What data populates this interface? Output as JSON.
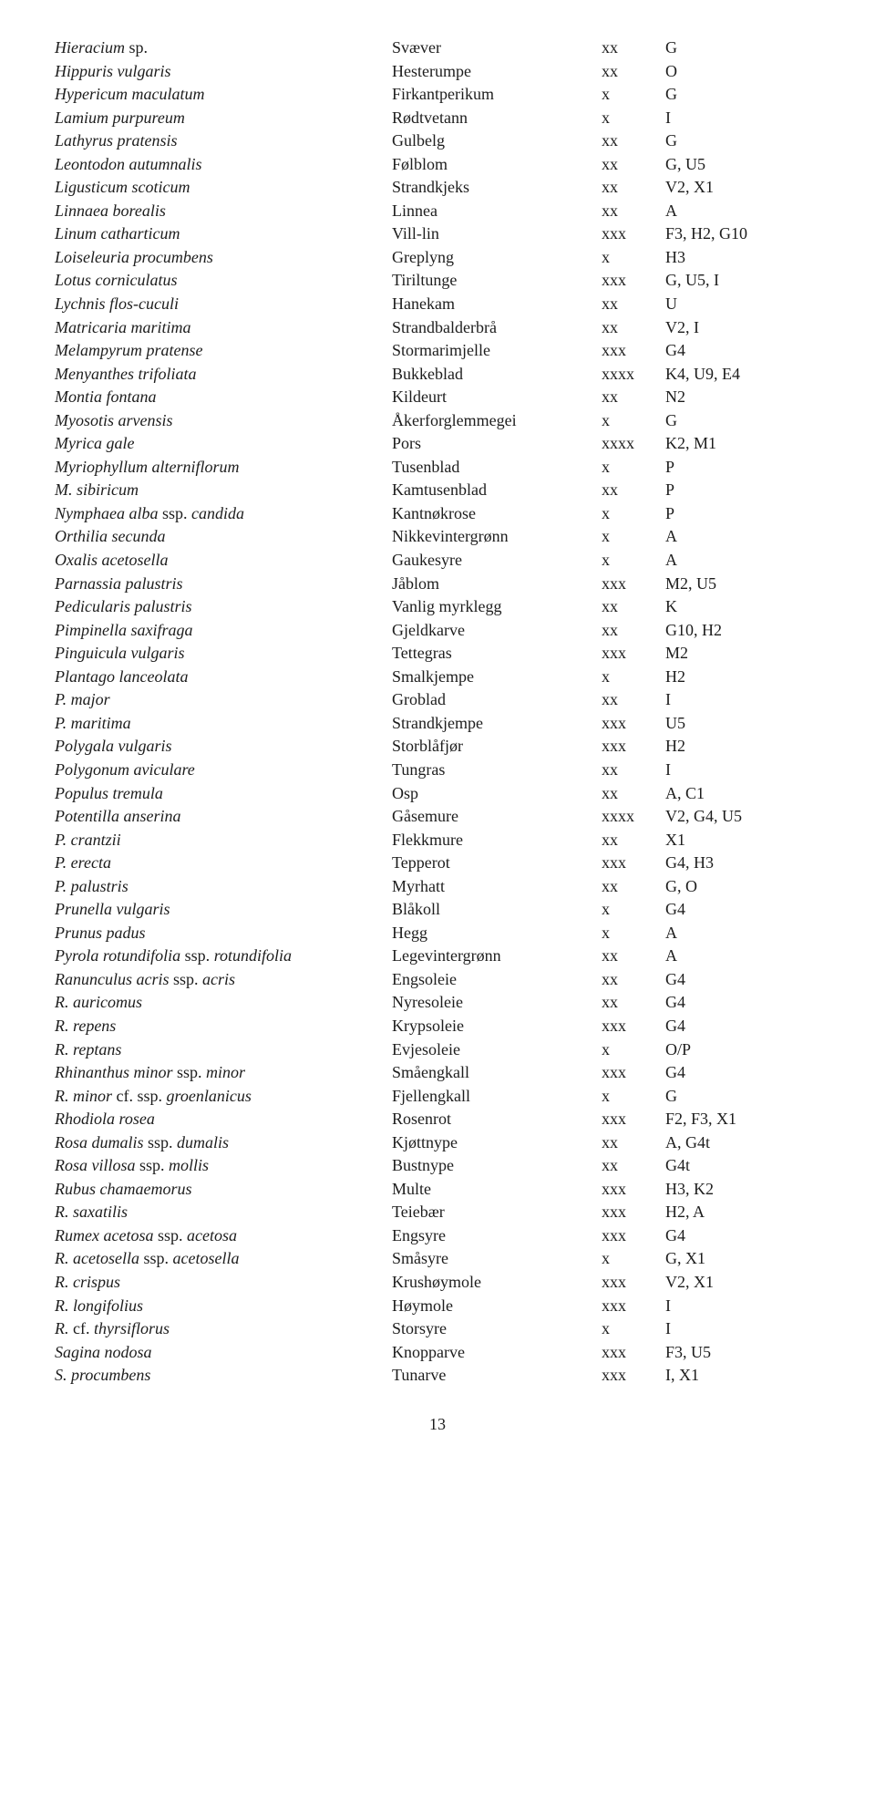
{
  "page_number": "13",
  "rows": [
    {
      "c1": "<i>Hieracium</i> sp.",
      "c2": "Svæver",
      "c3": "xx",
      "c4": "G"
    },
    {
      "c1": "<i>Hippuris vulgaris</i>",
      "c2": "Hesterumpe",
      "c3": "xx",
      "c4": "O"
    },
    {
      "c1": "<i>Hypericum maculatum</i>",
      "c2": "Firkantperikum",
      "c3": "x",
      "c4": "G"
    },
    {
      "c1": "<i>Lamium purpureum</i>",
      "c2": "Rødtvetann",
      "c3": "x",
      "c4": "I"
    },
    {
      "c1": "<i>Lathyrus pratensis</i>",
      "c2": "Gulbelg",
      "c3": "xx",
      "c4": "G"
    },
    {
      "c1": "<i>Leontodon autumnalis</i>",
      "c2": "Følblom",
      "c3": "xx",
      "c4": "G, U5"
    },
    {
      "c1": "<i>Ligusticum scoticum</i>",
      "c2": "Strandkjeks",
      "c3": "xx",
      "c4": "V2, X1"
    },
    {
      "c1": "<i>Linnaea borealis</i>",
      "c2": "Linnea",
      "c3": "xx",
      "c4": "A"
    },
    {
      "c1": "<i>Linum catharticum</i>",
      "c2": "Vill-lin",
      "c3": "xxx",
      "c4": "F3, H2, G10"
    },
    {
      "c1": "<i>Loiseleuria procumbens</i>",
      "c2": "Greplyng",
      "c3": "x",
      "c4": "H3"
    },
    {
      "c1": "<i>Lotus corniculatus</i>",
      "c2": "Tiriltunge",
      "c3": "xxx",
      "c4": "G, U5, I"
    },
    {
      "c1": "<i>Lychnis flos-cuculi</i>",
      "c2": "Hanekam",
      "c3": "xx",
      "c4": "U"
    },
    {
      "c1": "<i>Matricaria maritima</i>",
      "c2": "Strandbalderbrå",
      "c3": "xx",
      "c4": "V2, I"
    },
    {
      "c1": "<i>Melampyrum pratense</i>",
      "c2": "Stormarimjelle",
      "c3": "xxx",
      "c4": "G4"
    },
    {
      "c1": "<i>Menyanthes trifoliata</i>",
      "c2": "Bukkeblad",
      "c3": "xxxx",
      "c4": "K4, U9, E4"
    },
    {
      "c1": "<i>Montia fontana</i>",
      "c2": "Kildeurt",
      "c3": "xx",
      "c4": "N2"
    },
    {
      "c1": "<i>Myosotis arvensis</i>",
      "c2": "Åkerforglemmegei",
      "c3": "x",
      "c4": "G"
    },
    {
      "c1": "<i>Myrica gale</i>",
      "c2": "Pors",
      "c3": "xxxx",
      "c4": "K2, M1"
    },
    {
      "c1": "<i>Myriophyllum alterniflorum</i>",
      "c2": "Tusenblad",
      "c3": "x",
      "c4": "P"
    },
    {
      "c1": "<i>M. sibiricum</i>",
      "c2": "Kamtusenblad",
      "c3": "xx",
      "c4": "P"
    },
    {
      "c1": "<i>Nymphaea alba</i> ssp. <i>candida</i>",
      "c2": "Kantnøkrose",
      "c3": "x",
      "c4": "P"
    },
    {
      "c1": "<i>Orthilia secunda</i>",
      "c2": "Nikkevintergrønn",
      "c3": "x",
      "c4": "A"
    },
    {
      "c1": "<i>Oxalis acetosella</i>",
      "c2": "Gaukesyre",
      "c3": "x",
      "c4": "A"
    },
    {
      "c1": "<i>Parnassia palustris</i>",
      "c2": "Jåblom",
      "c3": "xxx",
      "c4": "M2, U5"
    },
    {
      "c1": "<i>Pedicularis palustris</i>",
      "c2": "Vanlig myrklegg",
      "c3": "xx",
      "c4": "K"
    },
    {
      "c1": "<i>Pimpinella saxifraga</i>",
      "c2": "Gjeldkarve",
      "c3": "xx",
      "c4": "G10, H2"
    },
    {
      "c1": "<i>Pinguicula vulgaris</i>",
      "c2": "Tettegras",
      "c3": "xxx",
      "c4": "M2"
    },
    {
      "c1": "<i>Plantago lanceolata</i>",
      "c2": "Smalkjempe",
      "c3": "x",
      "c4": "H2"
    },
    {
      "c1": "<i>P. major</i>",
      "c2": "Groblad",
      "c3": "xx",
      "c4": "I"
    },
    {
      "c1": "<i>P. maritima</i>",
      "c2": "Strandkjempe",
      "c3": "xxx",
      "c4": "U5"
    },
    {
      "c1": "<i>Polygala vulgaris</i>",
      "c2": "Storblåfjør",
      "c3": "xxx",
      "c4": "H2"
    },
    {
      "c1": "<i>Polygonum aviculare</i>",
      "c2": "Tungras",
      "c3": "xx",
      "c4": "I"
    },
    {
      "c1": "<i>Populus tremula</i>",
      "c2": "Osp",
      "c3": "xx",
      "c4": "A, C1"
    },
    {
      "c1": "<i>Potentilla anserina</i>",
      "c2": "Gåsemure",
      "c3": "xxxx",
      "c4": "V2, G4, U5"
    },
    {
      "c1": "<i>P. crantzii</i>",
      "c2": "Flekkmure",
      "c3": "xx",
      "c4": "X1"
    },
    {
      "c1": "<i>P. erecta</i>",
      "c2": "Tepperot",
      "c3": "xxx",
      "c4": "G4, H3"
    },
    {
      "c1": "<i>P. palustris</i>",
      "c2": "Myrhatt",
      "c3": "xx",
      "c4": "G, O"
    },
    {
      "c1": "<i>Prunella vulgaris</i>",
      "c2": "Blåkoll",
      "c3": "x",
      "c4": "G4"
    },
    {
      "c1": "<i>Prunus padus</i>",
      "c2": "Hegg",
      "c3": "x",
      "c4": "A"
    },
    {
      "c1": "<i>Pyrola rotundifolia</i> ssp. <i>rotundifolia</i>",
      "c2": "Legevintergrønn",
      "c3": "xx",
      "c4": "A"
    },
    {
      "c1": "<i>Ranunculus acris</i> ssp. <i>acris</i>",
      "c2": "Engsoleie",
      "c3": "xx",
      "c4": "G4"
    },
    {
      "c1": "<i>R. auricomus</i>",
      "c2": "Nyresoleie",
      "c3": "xx",
      "c4": "G4"
    },
    {
      "c1": "<i>R. repens</i>",
      "c2": "Krypsoleie",
      "c3": "xxx",
      "c4": "G4"
    },
    {
      "c1": "<i>R. reptans</i>",
      "c2": "Evjesoleie",
      "c3": "x",
      "c4": "O/P"
    },
    {
      "c1": "<i>Rhinanthus minor</i> ssp. <i>minor</i>",
      "c2": "Småengkall",
      "c3": "xxx",
      "c4": "G4"
    },
    {
      "c1": "<i>R. minor</i> cf. ssp. <i>groenlanicus</i>",
      "c2": "Fjellengkall",
      "c3": "x",
      "c4": "G"
    },
    {
      "c1": "<i>Rhodiola rosea</i>",
      "c2": "Rosenrot",
      "c3": "xxx",
      "c4": "F2, F3, X1"
    },
    {
      "c1": "<i>Rosa dumalis</i> ssp. <i>dumalis</i>",
      "c2": "Kjøttnype",
      "c3": "xx",
      "c4": "A, G4t"
    },
    {
      "c1": "<i>Rosa villosa</i> ssp. <i>mollis</i>",
      "c2": "Bustnype",
      "c3": "xx",
      "c4": "G4t"
    },
    {
      "c1": "<i>Rubus chamaemorus</i>",
      "c2": "Multe",
      "c3": "xxx",
      "c4": "H3, K2"
    },
    {
      "c1": "<i>R. saxatilis</i>",
      "c2": "Teiebær",
      "c3": "xxx",
      "c4": "H2, A"
    },
    {
      "c1": "<i>Rumex acetosa</i> ssp. <i>acetosa</i>",
      "c2": "Engsyre",
      "c3": "xxx",
      "c4": "G4"
    },
    {
      "c1": "<i>R. acetosella</i> ssp. <i>acetosella</i>",
      "c2": "Småsyre",
      "c3": "x",
      "c4": "G, X1"
    },
    {
      "c1": "<i>R. crispus</i>",
      "c2": "Krushøymole",
      "c3": "xxx",
      "c4": "V2, X1"
    },
    {
      "c1": "<i>R. longifolius</i>",
      "c2": "Høymole",
      "c3": "xxx",
      "c4": "I"
    },
    {
      "c1": "<i>R.</i> cf. <i>thyrsiflorus</i>",
      "c2": "Storsyre",
      "c3": "x",
      "c4": "I"
    },
    {
      "c1": "<i>Sagina nodosa</i>",
      "c2": "Knopparve",
      "c3": "xxx",
      "c4": "F3, U5"
    },
    {
      "c1": "<i>S. procumbens</i>",
      "c2": "Tunarve",
      "c3": "xxx",
      "c4": "I, X1"
    }
  ]
}
